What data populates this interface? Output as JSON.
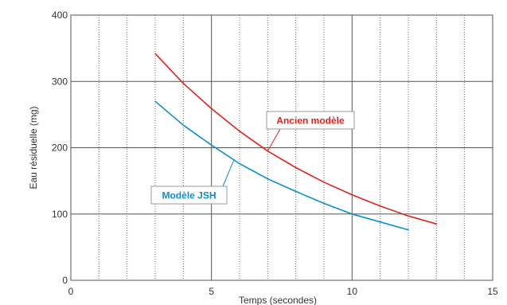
{
  "chart_data": {
    "type": "line",
    "title": "",
    "xlabel": "Temps (secondes)",
    "ylabel": "Eau résiduelle (mg)",
    "xlim": [
      0,
      15
    ],
    "ylim": [
      0,
      400
    ],
    "x_ticks": [
      0,
      5,
      10,
      15
    ],
    "y_ticks": [
      0,
      100,
      200,
      300,
      400
    ],
    "x_major_grid": [
      5,
      10
    ],
    "x_minor_grid": [
      1,
      2,
      3,
      4,
      6,
      7,
      8,
      9,
      11,
      12,
      13,
      14
    ],
    "y_grid": [
      100,
      200,
      300
    ],
    "grid": true,
    "legend": "callout labels",
    "series": [
      {
        "name": "Ancien modèle",
        "color": "#e2231a",
        "x": [
          3,
          4,
          5,
          6,
          7,
          8,
          9,
          10,
          11,
          12,
          13
        ],
        "y": [
          342,
          297,
          259,
          225,
          195,
          170,
          148,
          129,
          112,
          97,
          85
        ]
      },
      {
        "name": "Modèle JSH",
        "color": "#0a8fd0",
        "x": [
          3,
          4,
          5,
          6,
          7,
          8,
          9,
          10,
          11,
          12
        ],
        "y": [
          270,
          234,
          204,
          176,
          153,
          134,
          116,
          100,
          88,
          76
        ]
      }
    ]
  },
  "callouts": [
    {
      "text": "Ancien modèle",
      "series": 0,
      "anchor_x": 7.0,
      "color": "#e2231a"
    },
    {
      "text": "Modèle JSH",
      "series": 1,
      "anchor_x": 5.8,
      "color": "#0a8fd0"
    }
  ]
}
